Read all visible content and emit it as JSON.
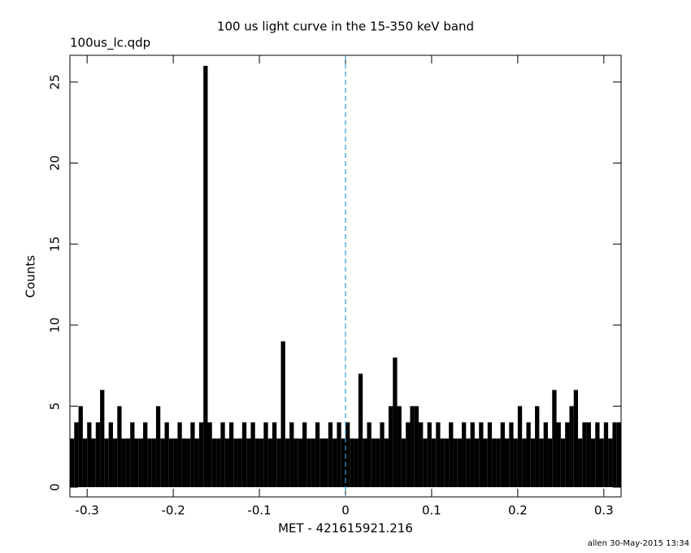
{
  "chart_data": {
    "type": "histogram",
    "title": "100 us light curve in the 15-350 keV band",
    "subtitle": "100us_lc.qdp",
    "xlabel": "MET - 421615921.216",
    "ylabel": "Counts",
    "footer": "allen 30-May-2015 13:34",
    "color": "#000000",
    "vline": 0,
    "vline_color": "#2a9fd6",
    "xlim": [
      -0.32,
      0.32
    ],
    "ylim": [
      -0.6,
      26.65
    ],
    "xticks": [
      -0.3,
      -0.2,
      -0.1,
      0,
      0.1,
      0.2,
      0.3
    ],
    "yticks": [
      0,
      5,
      10,
      15,
      20,
      25
    ],
    "x": [
      -0.3175,
      -0.3125,
      -0.3075,
      -0.3025,
      -0.2975,
      -0.2925,
      -0.2875,
      -0.2825,
      -0.2775,
      -0.2725,
      -0.2675,
      -0.2625,
      -0.2575,
      -0.2525,
      -0.2475,
      -0.2425,
      -0.2375,
      -0.2325,
      -0.2275,
      -0.2225,
      -0.2175,
      -0.2125,
      -0.2075,
      -0.2025,
      -0.1975,
      -0.1925,
      -0.1875,
      -0.1825,
      -0.1775,
      -0.1725,
      -0.1675,
      -0.1625,
      -0.1575,
      -0.1525,
      -0.1475,
      -0.1425,
      -0.1375,
      -0.1325,
      -0.1275,
      -0.1225,
      -0.1175,
      -0.1125,
      -0.1075,
      -0.1025,
      -0.0975,
      -0.0925,
      -0.0875,
      -0.0825,
      -0.0775,
      -0.0725,
      -0.0675,
      -0.0625,
      -0.0575,
      -0.0525,
      -0.0475,
      -0.0425,
      -0.0375,
      -0.0325,
      -0.0275,
      -0.0225,
      -0.0175,
      -0.0125,
      -0.0075,
      -0.0025,
      0.0025,
      0.0075,
      0.0125,
      0.0175,
      0.0225,
      0.0275,
      0.0325,
      0.0375,
      0.0425,
      0.0475,
      0.0525,
      0.0575,
      0.0625,
      0.0675,
      0.0725,
      0.0775,
      0.0825,
      0.0875,
      0.0925,
      0.0975,
      0.1025,
      0.1075,
      0.1125,
      0.1175,
      0.1225,
      0.1275,
      0.1325,
      0.1375,
      0.1425,
      0.1475,
      0.1525,
      0.1575,
      0.1625,
      0.1675,
      0.1725,
      0.1775,
      0.1825,
      0.1875,
      0.1925,
      0.1975,
      0.2025,
      0.2075,
      0.2125,
      0.2175,
      0.2225,
      0.2275,
      0.2325,
      0.2375,
      0.2425,
      0.2475,
      0.2525,
      0.2575,
      0.2625,
      0.2675,
      0.2725,
      0.2775,
      0.2825,
      0.2875,
      0.2925,
      0.2975,
      0.3025,
      0.3075,
      0.3125,
      0.3175
    ],
    "values": [
      3,
      4,
      5,
      3,
      4,
      3,
      4,
      6,
      3,
      4,
      3,
      5,
      3,
      3,
      4,
      3,
      3,
      4,
      3,
      3,
      5,
      3,
      4,
      3,
      3,
      4,
      3,
      3,
      4,
      3,
      4,
      26,
      4,
      3,
      3,
      4,
      3,
      4,
      3,
      3,
      4,
      3,
      4,
      3,
      3,
      4,
      3,
      4,
      3,
      9,
      3,
      4,
      3,
      3,
      4,
      3,
      3,
      4,
      3,
      3,
      4,
      3,
      4,
      3,
      4,
      3,
      3,
      7,
      3,
      4,
      3,
      3,
      4,
      3,
      5,
      8,
      5,
      3,
      4,
      5,
      5,
      4,
      3,
      4,
      3,
      4,
      3,
      3,
      4,
      3,
      3,
      4,
      3,
      4,
      3,
      4,
      3,
      4,
      3,
      3,
      4,
      3,
      4,
      3,
      5,
      3,
      4,
      3,
      5,
      3,
      4,
      3,
      6,
      4,
      3,
      4,
      5,
      6,
      3,
      4,
      4,
      3,
      4,
      3,
      4,
      3,
      4,
      4
    ]
  }
}
